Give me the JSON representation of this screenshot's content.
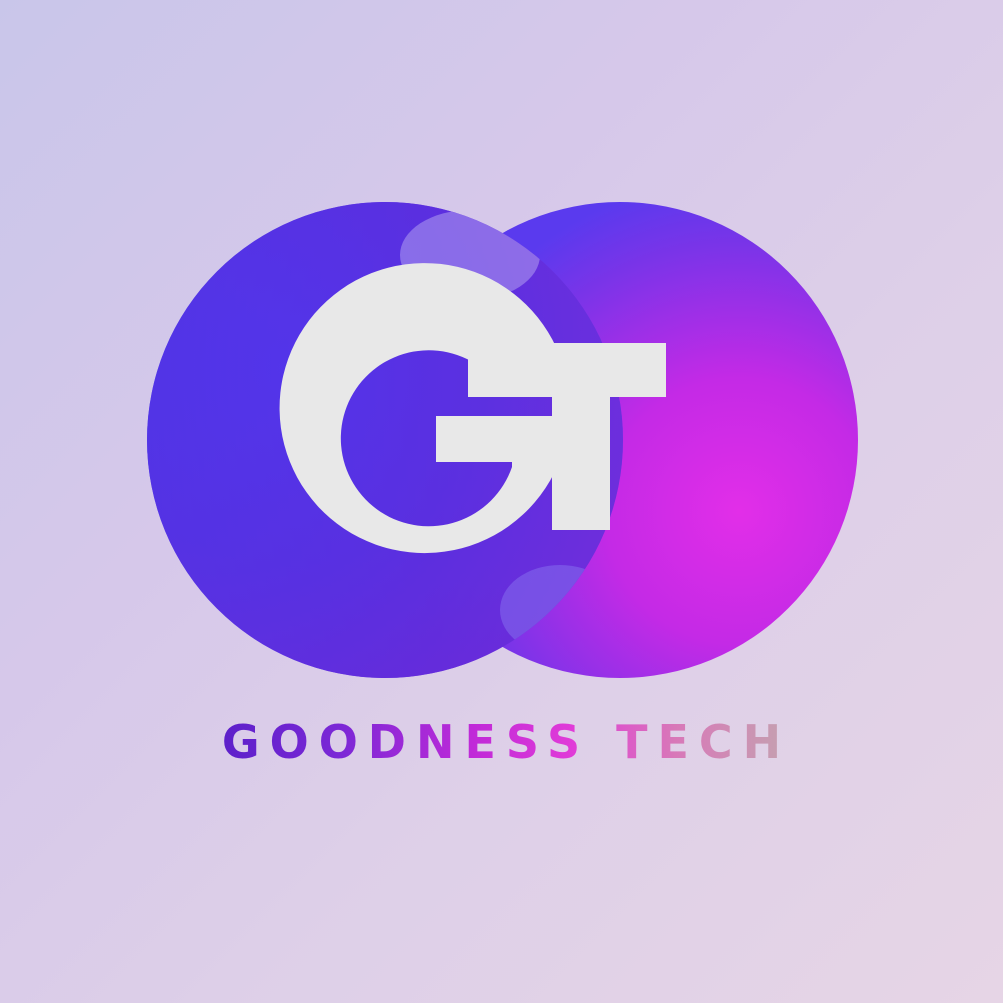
{
  "logo": {
    "monogram": "GT",
    "wordmark": "GOODNESS TECH",
    "colors": {
      "background": "#d4cbea",
      "circle_left": "#4a2ee0",
      "circle_right": "#d82ae8",
      "monogram": "#e6e6e6"
    }
  }
}
